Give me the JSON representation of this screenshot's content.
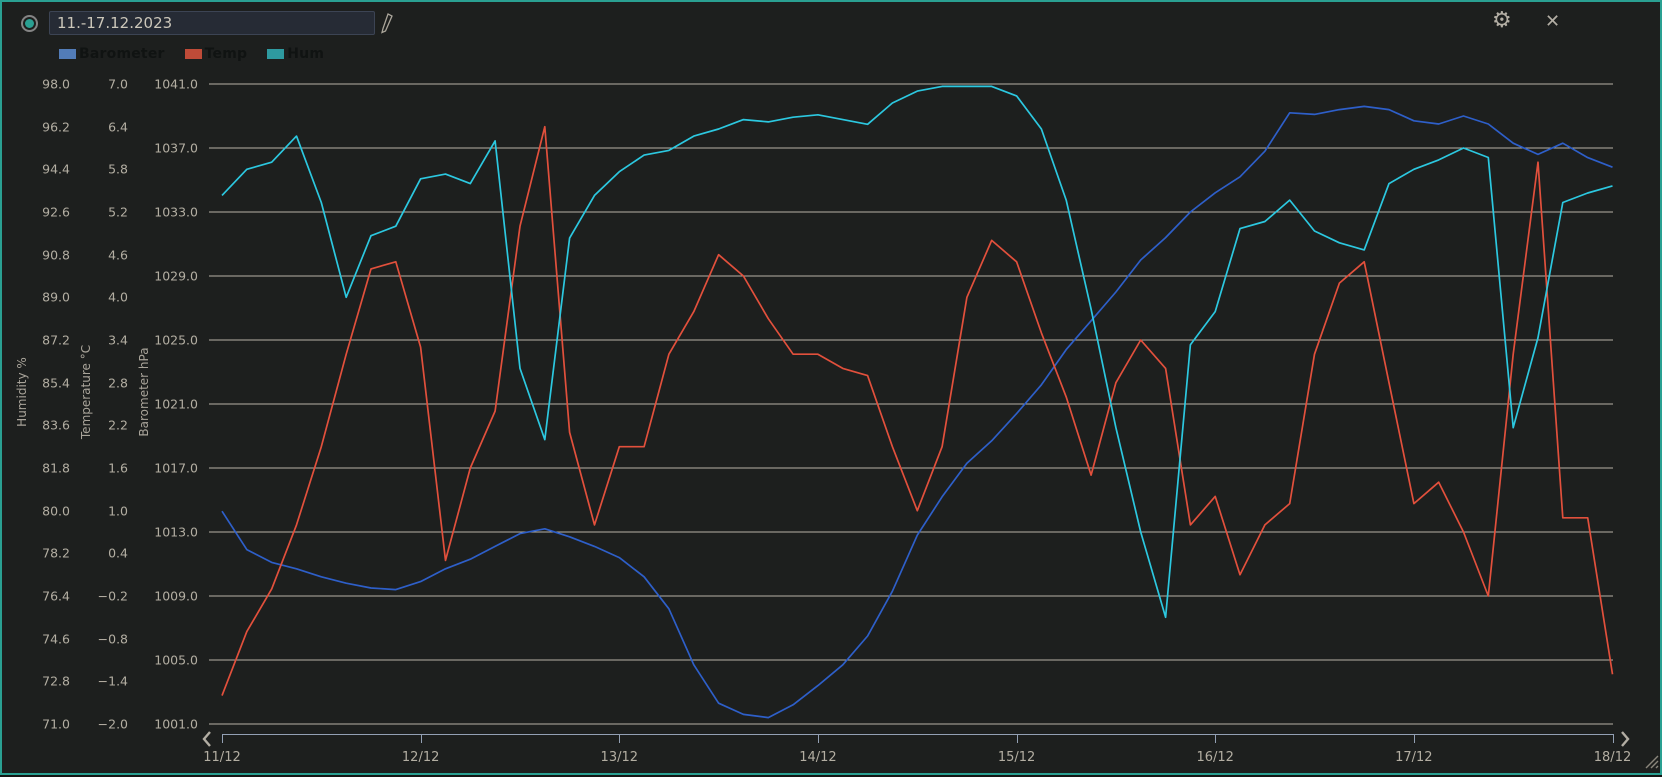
{
  "window": {
    "accent_color": "#2aa092",
    "background": "#1d1f1e"
  },
  "header": {
    "date_range": "11.-17.12.2023",
    "icons": {
      "radio": "radio-dot",
      "pencil": "edit-pencil",
      "gear": "⚙",
      "close": "✕"
    }
  },
  "legend": [
    {
      "label": "Barometer",
      "color": "#527cb8"
    },
    {
      "label": "Temp",
      "color": "#bf4b38"
    },
    {
      "label": "Hum",
      "color": "#2e9aa0"
    }
  ],
  "chart_data": {
    "type": "line",
    "title": "",
    "legend_position": "top-left",
    "grid": "horizontal",
    "x_start": "11/12 00:00",
    "x_step_days": 0.125,
    "x_total_days": 7,
    "x_tick_labels": [
      "11/12",
      "12/12",
      "13/12",
      "14/12",
      "15/12",
      "16/12",
      "17/12",
      "18/12"
    ],
    "axes": [
      {
        "title": "Humidity %",
        "min": 71.0,
        "max": 98.0,
        "ticks": [
          98.0,
          96.2,
          94.4,
          92.6,
          90.8,
          89.0,
          87.2,
          85.4,
          83.6,
          81.8,
          80.0,
          78.2,
          76.4,
          74.6,
          72.8,
          71.0
        ]
      },
      {
        "title": "Temperature °C",
        "min": -2.0,
        "max": 7.0,
        "ticks": [
          7.0,
          6.4,
          5.8,
          5.2,
          4.6,
          4.0,
          3.4,
          2.8,
          2.2,
          1.6,
          1.0,
          0.4,
          -0.2,
          -0.8,
          -1.4,
          -2.0
        ]
      },
      {
        "title": "Barometer hPa",
        "min": 1001.0,
        "max": 1041.0,
        "ticks": [
          1041.0,
          1037.0,
          1033.0,
          1029.0,
          1025.0,
          1021.0,
          1017.0,
          1013.0,
          1009.0,
          1005.0,
          1001.0
        ]
      }
    ],
    "series": [
      {
        "name": "Barometer",
        "axis": 2,
        "color": "#2e5fc9",
        "values": [
          1014.3,
          1011.9,
          1011.1,
          1010.7,
          1010.2,
          1009.8,
          1009.5,
          1009.4,
          1009.9,
          1010.7,
          1011.3,
          1012.1,
          1012.9,
          1013.2,
          1012.7,
          1012.1,
          1011.4,
          1010.2,
          1008.2,
          1004.7,
          1002.3,
          1001.6,
          1001.4,
          1002.2,
          1003.4,
          1004.7,
          1006.5,
          1009.3,
          1012.8,
          1015.2,
          1017.3,
          1018.7,
          1020.4,
          1022.2,
          1024.4,
          1026.2,
          1028.0,
          1030.0,
          1031.4,
          1033.0,
          1034.2,
          1035.2,
          1036.8,
          1039.2,
          1039.1,
          1039.4,
          1039.6,
          1039.4,
          1038.7,
          1038.5,
          1039.0,
          1038.5,
          1037.3,
          1036.6,
          1037.3,
          1036.4,
          1035.8
        ]
      },
      {
        "name": "Temp",
        "axis": 1,
        "color": "#e2503c",
        "values": [
          -1.6,
          -0.7,
          -0.1,
          0.8,
          1.9,
          3.2,
          4.4,
          4.5,
          3.3,
          0.3,
          1.6,
          2.4,
          5.0,
          6.4,
          2.1,
          0.8,
          1.9,
          1.9,
          3.2,
          3.8,
          4.6,
          4.3,
          3.7,
          3.2,
          3.2,
          3.0,
          2.9,
          1.9,
          1.0,
          1.9,
          4.0,
          4.8,
          4.5,
          3.5,
          2.6,
          1.5,
          2.8,
          3.4,
          3.0,
          0.8,
          1.2,
          0.1,
          0.8,
          1.1,
          3.2,
          4.2,
          4.5,
          2.8,
          1.1,
          1.4,
          0.7,
          -0.2,
          3.2,
          5.9,
          0.9,
          0.9,
          -1.3
        ]
      },
      {
        "name": "Hum",
        "axis": 0,
        "color": "#2cc8e0",
        "values": [
          93.3,
          94.4,
          94.7,
          95.8,
          93.0,
          89.0,
          91.6,
          92.0,
          94.0,
          94.2,
          93.8,
          95.6,
          86.0,
          83.0,
          91.5,
          93.3,
          94.3,
          95.0,
          95.2,
          95.8,
          96.1,
          96.5,
          96.4,
          96.6,
          96.7,
          96.5,
          96.3,
          97.2,
          97.7,
          97.9,
          97.9,
          97.9,
          97.5,
          96.1,
          93.1,
          88.5,
          83.5,
          79.1,
          75.5,
          87.0,
          88.4,
          91.9,
          92.2,
          93.1,
          91.8,
          91.3,
          91.0,
          93.8,
          94.4,
          94.8,
          95.3,
          94.9,
          83.5,
          87.3,
          93.0,
          93.4,
          93.7
        ]
      }
    ]
  }
}
